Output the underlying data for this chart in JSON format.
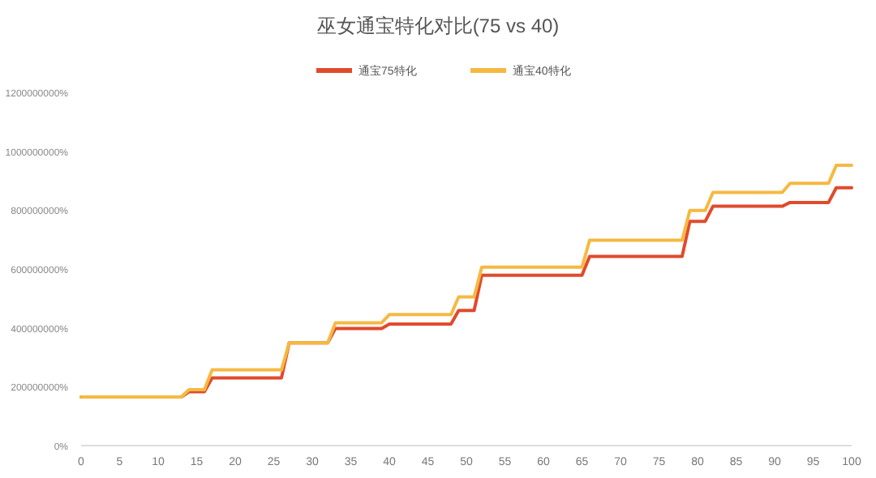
{
  "chart_data": {
    "type": "line",
    "title": "巫女通宝特化对比(75 vs 40)",
    "legend": "top",
    "grid": false,
    "marker": "none",
    "line_style": "solid",
    "xlim": [
      0,
      100
    ],
    "xticks": [
      0,
      5,
      10,
      15,
      20,
      25,
      30,
      35,
      40,
      45,
      50,
      55,
      60,
      65,
      70,
      75,
      80,
      85,
      90,
      95,
      100
    ],
    "ylim": [
      0,
      1200000000
    ],
    "yticks": [
      {
        "value": 0,
        "label": "0%"
      },
      {
        "value": 200000000,
        "label": "200000000%"
      },
      {
        "value": 400000000,
        "label": "400000000%"
      },
      {
        "value": 600000000,
        "label": "600000000%"
      },
      {
        "value": 800000000,
        "label": "800000000%"
      },
      {
        "value": 1000000000,
        "label": "1000000000%"
      },
      {
        "value": 1200000000,
        "label": "1200000000%"
      }
    ],
    "series": [
      {
        "name": "通宝75特化",
        "color": "#e04b2c",
        "x": [
          0,
          13,
          14,
          16,
          17,
          26,
          27,
          32,
          33,
          39,
          40,
          48,
          49,
          51,
          52,
          65,
          66,
          78,
          79,
          81,
          82,
          91,
          92,
          97,
          98,
          100
        ],
        "values": [
          165000000,
          165000000,
          183000000,
          183000000,
          230000000,
          230000000,
          349000000,
          349000000,
          398000000,
          398000000,
          413000000,
          413000000,
          459000000,
          459000000,
          579000000,
          579000000,
          643000000,
          643000000,
          762000000,
          762000000,
          813000000,
          813000000,
          826000000,
          826000000,
          876000000,
          876000000
        ]
      },
      {
        "name": "通宝40特化",
        "color": "#f5b942",
        "x": [
          0,
          13,
          14,
          16,
          17,
          26,
          27,
          32,
          33,
          39,
          40,
          48,
          49,
          51,
          52,
          65,
          66,
          78,
          79,
          81,
          82,
          91,
          92,
          97,
          98,
          100
        ],
        "values": [
          165000000,
          165000000,
          190000000,
          190000000,
          257000000,
          257000000,
          349000000,
          349000000,
          417000000,
          417000000,
          445000000,
          445000000,
          505000000,
          505000000,
          606000000,
          606000000,
          698000000,
          698000000,
          799000000,
          799000000,
          860000000,
          860000000,
          891000000,
          891000000,
          952000000,
          952000000
        ]
      }
    ]
  }
}
